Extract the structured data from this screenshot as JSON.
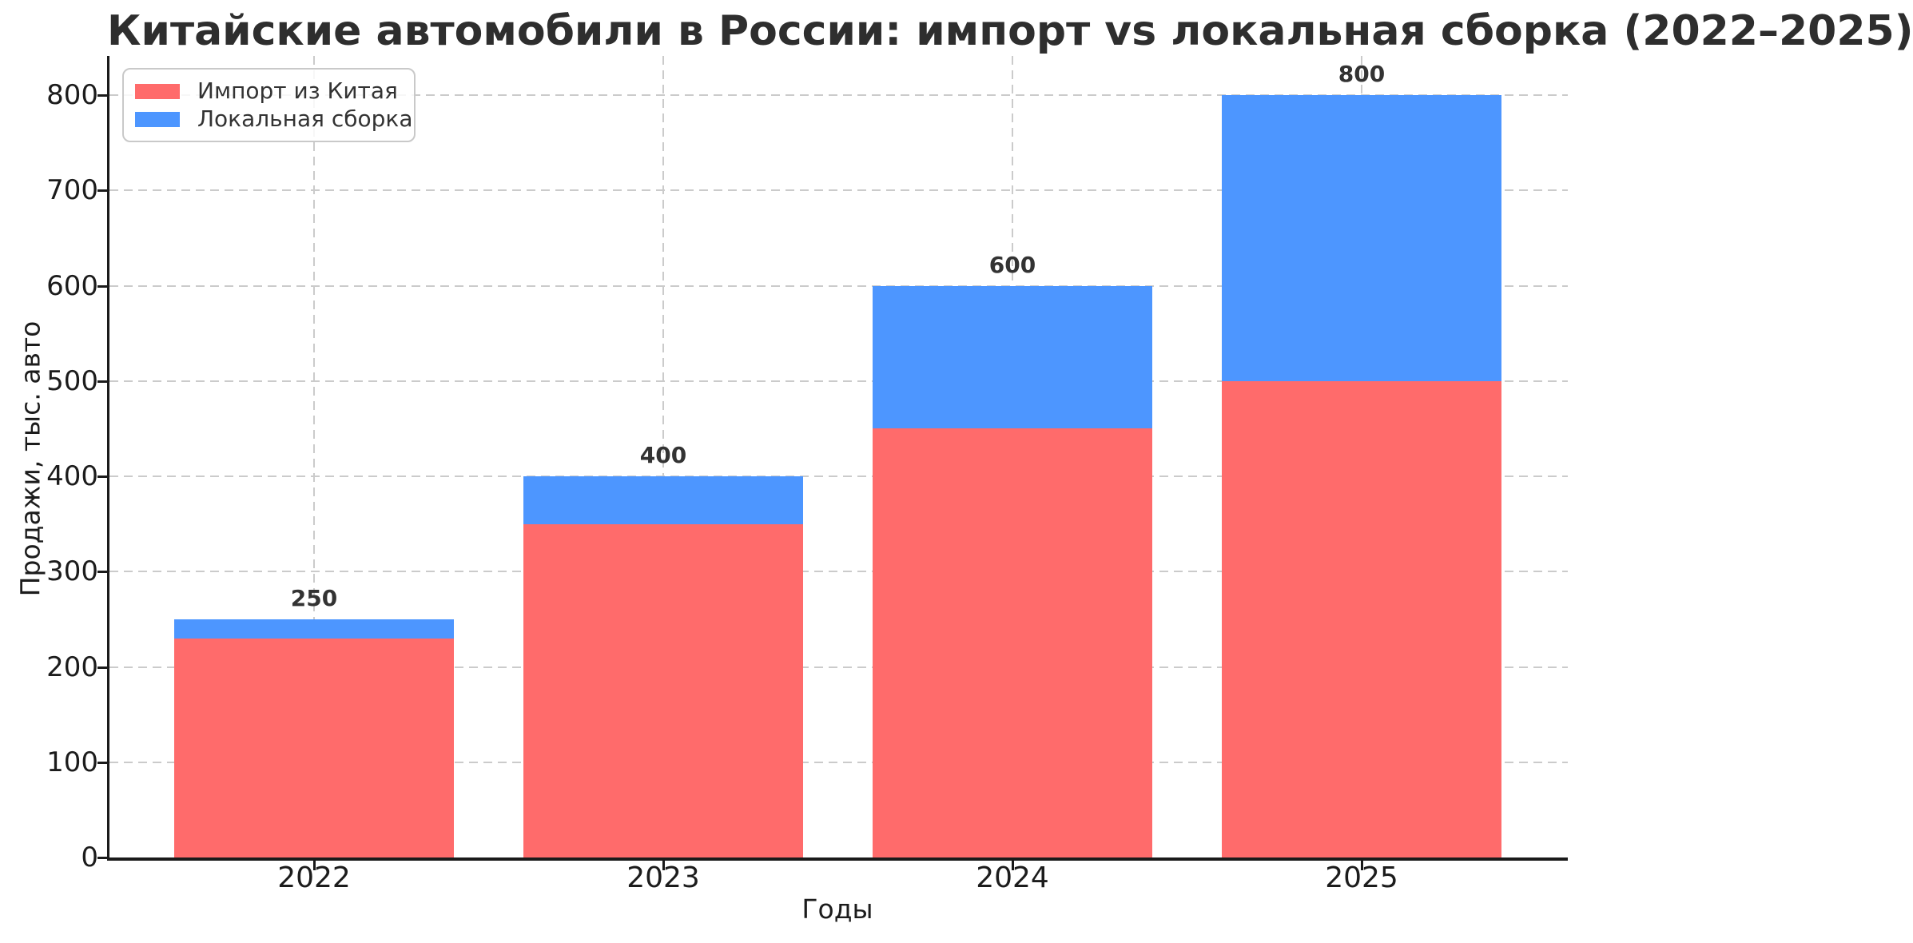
{
  "chart_data": {
    "type": "bar",
    "stacked": true,
    "title": "Китайские автомобили в России: импорт vs локальная сборка (2022–2025)",
    "xlabel": "Годы",
    "ylabel": "Продажи, тыс. авто",
    "categories": [
      "2022",
      "2023",
      "2024",
      "2025"
    ],
    "series": [
      {
        "name": "Импорт из Китая",
        "color": "#FF6B6B",
        "values": [
          230,
          350,
          450,
          500
        ]
      },
      {
        "name": "Локальная сборка",
        "color": "#4D96FF",
        "values": [
          20,
          50,
          150,
          300
        ]
      }
    ],
    "totals": [
      250,
      400,
      600,
      800
    ],
    "yticks": [
      0,
      100,
      200,
      300,
      400,
      500,
      600,
      700,
      800
    ],
    "ylim": [
      0,
      840
    ],
    "grid": {
      "style": "dashed",
      "axes": "both",
      "color": "#cbcbcb"
    },
    "legend": {
      "position": "upper-left"
    }
  },
  "colors": {
    "title": "#2e2e2e",
    "tick_label": "#1c1c1c",
    "value_label": "#333333",
    "spine": "#1a1a1a",
    "grid": "#cbcbcb",
    "background": "#ffffff"
  }
}
